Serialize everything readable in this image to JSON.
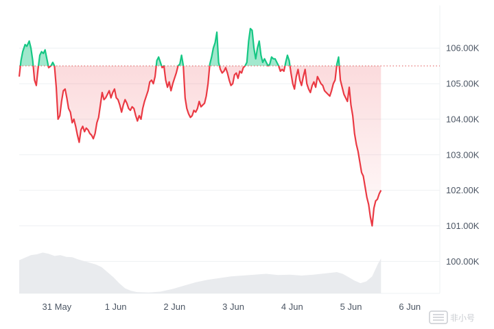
{
  "chart_data": {
    "type": "area",
    "baseline": 105500,
    "ylim": [
      99100,
      107200
    ],
    "xlim": [
      0,
      7.15
    ],
    "y_ticks": [
      {
        "value": 106000,
        "label": "106.00K"
      },
      {
        "value": 105000,
        "label": "105.00K"
      },
      {
        "value": 104000,
        "label": "104.00K"
      },
      {
        "value": 103000,
        "label": "103.00K"
      },
      {
        "value": 102000,
        "label": "102.00K"
      },
      {
        "value": 101000,
        "label": "101.00K"
      },
      {
        "value": 100000,
        "label": "100.00K"
      }
    ],
    "x_ticks": [
      {
        "value": 0.64,
        "label": "31 May"
      },
      {
        "value": 1.64,
        "label": "1 Jun"
      },
      {
        "value": 2.64,
        "label": "2 Jun"
      },
      {
        "value": 3.64,
        "label": "3 Jun"
      },
      {
        "value": 4.64,
        "label": "4 Jun"
      },
      {
        "value": 5.64,
        "label": "5 Jun"
      },
      {
        "value": 6.64,
        "label": "6 Jun"
      }
    ],
    "price": [
      [
        0.0,
        105200
      ],
      [
        0.03,
        105650
      ],
      [
        0.06,
        105900
      ],
      [
        0.1,
        106100
      ],
      [
        0.13,
        106050
      ],
      [
        0.17,
        106200
      ],
      [
        0.2,
        106000
      ],
      [
        0.23,
        105650
      ],
      [
        0.26,
        105100
      ],
      [
        0.29,
        104950
      ],
      [
        0.32,
        105400
      ],
      [
        0.35,
        105800
      ],
      [
        0.38,
        105900
      ],
      [
        0.41,
        105850
      ],
      [
        0.44,
        105950
      ],
      [
        0.47,
        105700
      ],
      [
        0.5,
        105450
      ],
      [
        0.54,
        105500
      ],
      [
        0.57,
        105600
      ],
      [
        0.6,
        105500
      ],
      [
        0.63,
        104900
      ],
      [
        0.66,
        104000
      ],
      [
        0.69,
        104100
      ],
      [
        0.72,
        104500
      ],
      [
        0.75,
        104800
      ],
      [
        0.78,
        104850
      ],
      [
        0.81,
        104600
      ],
      [
        0.84,
        104300
      ],
      [
        0.87,
        104200
      ],
      [
        0.9,
        103900
      ],
      [
        0.93,
        104000
      ],
      [
        0.96,
        103800
      ],
      [
        0.99,
        103550
      ],
      [
        1.02,
        103350
      ],
      [
        1.05,
        103700
      ],
      [
        1.08,
        103800
      ],
      [
        1.11,
        103650
      ],
      [
        1.14,
        103750
      ],
      [
        1.17,
        103700
      ],
      [
        1.2,
        103600
      ],
      [
        1.23,
        103550
      ],
      [
        1.26,
        103450
      ],
      [
        1.29,
        103600
      ],
      [
        1.32,
        103900
      ],
      [
        1.35,
        104050
      ],
      [
        1.38,
        104400
      ],
      [
        1.41,
        104750
      ],
      [
        1.44,
        104550
      ],
      [
        1.47,
        104600
      ],
      [
        1.5,
        104700
      ],
      [
        1.53,
        104800
      ],
      [
        1.56,
        104600
      ],
      [
        1.59,
        104750
      ],
      [
        1.62,
        104850
      ],
      [
        1.65,
        104600
      ],
      [
        1.68,
        104550
      ],
      [
        1.71,
        104400
      ],
      [
        1.74,
        104200
      ],
      [
        1.77,
        104400
      ],
      [
        1.8,
        104550
      ],
      [
        1.83,
        104450
      ],
      [
        1.86,
        104300
      ],
      [
        1.89,
        104250
      ],
      [
        1.92,
        104350
      ],
      [
        1.95,
        104300
      ],
      [
        1.98,
        104100
      ],
      [
        2.01,
        103950
      ],
      [
        2.04,
        104100
      ],
      [
        2.07,
        104000
      ],
      [
        2.1,
        104300
      ],
      [
        2.13,
        104500
      ],
      [
        2.16,
        104650
      ],
      [
        2.19,
        104800
      ],
      [
        2.22,
        105050
      ],
      [
        2.25,
        105100
      ],
      [
        2.28,
        105000
      ],
      [
        2.31,
        105200
      ],
      [
        2.34,
        105650
      ],
      [
        2.37,
        105750
      ],
      [
        2.4,
        105600
      ],
      [
        2.43,
        105450
      ],
      [
        2.46,
        105500
      ],
      [
        2.49,
        105100
      ],
      [
        2.52,
        104900
      ],
      [
        2.55,
        105050
      ],
      [
        2.58,
        104800
      ],
      [
        2.61,
        105000
      ],
      [
        2.64,
        105150
      ],
      [
        2.67,
        105300
      ],
      [
        2.7,
        105500
      ],
      [
        2.73,
        105550
      ],
      [
        2.76,
        105800
      ],
      [
        2.79,
        105500
      ],
      [
        2.82,
        104600
      ],
      [
        2.85,
        104300
      ],
      [
        2.88,
        104150
      ],
      [
        2.91,
        104050
      ],
      [
        2.94,
        104100
      ],
      [
        2.97,
        104250
      ],
      [
        3.0,
        104200
      ],
      [
        3.03,
        104300
      ],
      [
        3.06,
        104500
      ],
      [
        3.09,
        104350
      ],
      [
        3.12,
        104400
      ],
      [
        3.15,
        104450
      ],
      [
        3.18,
        104650
      ],
      [
        3.21,
        105000
      ],
      [
        3.24,
        105550
      ],
      [
        3.27,
        105750
      ],
      [
        3.3,
        106000
      ],
      [
        3.33,
        106150
      ],
      [
        3.36,
        106450
      ],
      [
        3.39,
        105600
      ],
      [
        3.42,
        105400
      ],
      [
        3.45,
        105300
      ],
      [
        3.48,
        105350
      ],
      [
        3.51,
        105450
      ],
      [
        3.54,
        105300
      ],
      [
        3.57,
        105100
      ],
      [
        3.6,
        104950
      ],
      [
        3.63,
        105000
      ],
      [
        3.66,
        105250
      ],
      [
        3.69,
        105300
      ],
      [
        3.72,
        105150
      ],
      [
        3.75,
        105350
      ],
      [
        3.78,
        105300
      ],
      [
        3.81,
        105450
      ],
      [
        3.84,
        105500
      ],
      [
        3.87,
        105600
      ],
      [
        3.9,
        106200
      ],
      [
        3.93,
        106550
      ],
      [
        3.96,
        106500
      ],
      [
        3.99,
        106000
      ],
      [
        4.02,
        105700
      ],
      [
        4.05,
        106000
      ],
      [
        4.08,
        106200
      ],
      [
        4.11,
        105800
      ],
      [
        4.14,
        105600
      ],
      [
        4.17,
        105700
      ],
      [
        4.2,
        105600
      ],
      [
        4.23,
        105500
      ],
      [
        4.26,
        105550
      ],
      [
        4.29,
        105750
      ],
      [
        4.32,
        105700
      ],
      [
        4.35,
        105700
      ],
      [
        4.38,
        105600
      ],
      [
        4.41,
        105500
      ],
      [
        4.44,
        105350
      ],
      [
        4.47,
        105400
      ],
      [
        4.5,
        105350
      ],
      [
        4.53,
        105600
      ],
      [
        4.56,
        105800
      ],
      [
        4.59,
        105650
      ],
      [
        4.62,
        105300
      ],
      [
        4.65,
        105000
      ],
      [
        4.68,
        104850
      ],
      [
        4.71,
        105200
      ],
      [
        4.74,
        105400
      ],
      [
        4.77,
        105100
      ],
      [
        4.8,
        104950
      ],
      [
        4.83,
        105200
      ],
      [
        4.86,
        105400
      ],
      [
        4.89,
        105000
      ],
      [
        4.92,
        104850
      ],
      [
        4.95,
        104750
      ],
      [
        4.98,
        104950
      ],
      [
        5.01,
        105050
      ],
      [
        5.04,
        104900
      ],
      [
        5.07,
        105200
      ],
      [
        5.1,
        105100
      ],
      [
        5.13,
        105000
      ],
      [
        5.16,
        104950
      ],
      [
        5.19,
        104800
      ],
      [
        5.22,
        104750
      ],
      [
        5.25,
        104700
      ],
      [
        5.28,
        104650
      ],
      [
        5.31,
        104800
      ],
      [
        5.34,
        105000
      ],
      [
        5.37,
        105100
      ],
      [
        5.4,
        105550
      ],
      [
        5.43,
        105750
      ],
      [
        5.46,
        105100
      ],
      [
        5.49,
        104900
      ],
      [
        5.52,
        104700
      ],
      [
        5.55,
        104600
      ],
      [
        5.58,
        104500
      ],
      [
        5.61,
        104900
      ],
      [
        5.64,
        104400
      ],
      [
        5.67,
        104100
      ],
      [
        5.7,
        103600
      ],
      [
        5.73,
        103300
      ],
      [
        5.76,
        103100
      ],
      [
        5.79,
        102800
      ],
      [
        5.82,
        102500
      ],
      [
        5.85,
        102400
      ],
      [
        5.88,
        102100
      ],
      [
        5.91,
        101800
      ],
      [
        5.94,
        101600
      ],
      [
        5.97,
        101250
      ],
      [
        6.0,
        101000
      ],
      [
        6.03,
        101500
      ],
      [
        6.06,
        101700
      ],
      [
        6.09,
        101750
      ],
      [
        6.12,
        101900
      ],
      [
        6.15,
        102000
      ]
    ],
    "volume": [
      [
        0.0,
        0.78
      ],
      [
        0.1,
        0.84
      ],
      [
        0.2,
        0.9
      ],
      [
        0.3,
        0.92
      ],
      [
        0.4,
        0.96
      ],
      [
        0.5,
        0.93
      ],
      [
        0.6,
        0.88
      ],
      [
        0.7,
        0.9
      ],
      [
        0.8,
        0.86
      ],
      [
        0.9,
        0.85
      ],
      [
        1.0,
        0.8
      ],
      [
        1.1,
        0.76
      ],
      [
        1.2,
        0.72
      ],
      [
        1.3,
        0.68
      ],
      [
        1.4,
        0.62
      ],
      [
        1.5,
        0.5
      ],
      [
        1.6,
        0.38
      ],
      [
        1.7,
        0.24
      ],
      [
        1.8,
        0.12
      ],
      [
        1.9,
        0.06
      ],
      [
        2.0,
        0.03
      ],
      [
        2.2,
        0.02
      ],
      [
        2.4,
        0.04
      ],
      [
        2.6,
        0.1
      ],
      [
        2.8,
        0.18
      ],
      [
        3.0,
        0.26
      ],
      [
        3.2,
        0.32
      ],
      [
        3.4,
        0.36
      ],
      [
        3.6,
        0.4
      ],
      [
        3.8,
        0.42
      ],
      [
        4.0,
        0.44
      ],
      [
        4.2,
        0.46
      ],
      [
        4.4,
        0.43
      ],
      [
        4.6,
        0.44
      ],
      [
        4.8,
        0.42
      ],
      [
        5.0,
        0.44
      ],
      [
        5.2,
        0.47
      ],
      [
        5.4,
        0.5
      ],
      [
        5.5,
        0.46
      ],
      [
        5.6,
        0.38
      ],
      [
        5.7,
        0.3
      ],
      [
        5.8,
        0.24
      ],
      [
        5.9,
        0.28
      ],
      [
        6.0,
        0.4
      ],
      [
        6.05,
        0.55
      ],
      [
        6.1,
        0.7
      ],
      [
        6.15,
        0.82
      ]
    ],
    "colors": {
      "above": "#16c784",
      "below": "#ea3943",
      "volume": "#e9ebee",
      "grid": "#eef0f3",
      "baseline_dots": "#e05252"
    }
  },
  "watermark": {
    "text": "非小号",
    "icon": "feixiaohao-logo-icon"
  }
}
